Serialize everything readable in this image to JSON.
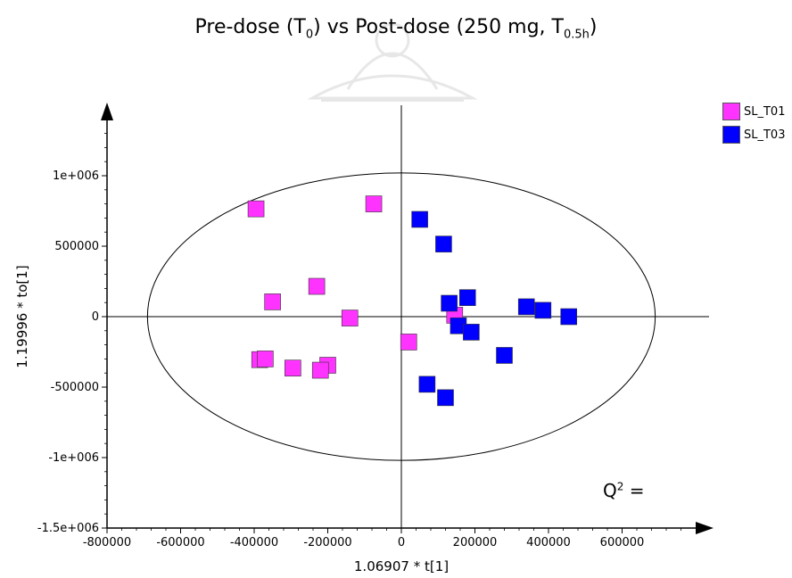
{
  "chart_data": {
    "type": "scatter",
    "title_main": "Pre-dose (T",
    "title_sub1": "0",
    "title_mid": ") vs Post-dose (250 mg, T",
    "title_sub2": "0.5h",
    "title_end": ")",
    "xlabel": "1.06907 * t[1]",
    "ylabel": "1.19996 * to[1]",
    "xlim": [
      -800000,
      800000
    ],
    "ylim": [
      -1500000,
      1500000
    ],
    "x_ticks": [
      -800000,
      -600000,
      -400000,
      -200000,
      0,
      200000,
      400000,
      600000
    ],
    "x_tick_labels": [
      "-800000",
      "-600000",
      "-400000",
      "-200000",
      "0",
      "200000",
      "400000",
      "600000"
    ],
    "y_ticks": [
      -1500000,
      -1000000,
      -500000,
      0,
      500000,
      1000000
    ],
    "y_tick_labels": [
      "-1.5e+006",
      "-1e+006",
      "-500000",
      "0",
      "500000",
      "1e+006"
    ],
    "ellipse": {
      "cx": 0,
      "cy": 0,
      "rx": 690000,
      "ry": 1020000
    },
    "series": [
      {
        "name": "SL_T01",
        "color": "#ff33ff",
        "points": [
          [
            -395000,
            765000
          ],
          [
            -75000,
            800000
          ],
          [
            -230000,
            215000
          ],
          [
            -350000,
            105000
          ],
          [
            -140000,
            -10000
          ],
          [
            20000,
            -180000
          ],
          [
            145000,
            10000
          ],
          [
            -385000,
            -305000
          ],
          [
            -370000,
            -300000
          ],
          [
            -295000,
            -365000
          ],
          [
            -200000,
            -345000
          ],
          [
            -220000,
            -380000
          ]
        ]
      },
      {
        "name": "SL_T03",
        "color": "#0000ff",
        "points": [
          [
            50000,
            690000
          ],
          [
            115000,
            515000
          ],
          [
            180000,
            135000
          ],
          [
            130000,
            95000
          ],
          [
            155000,
            -65000
          ],
          [
            190000,
            -110000
          ],
          [
            340000,
            70000
          ],
          [
            385000,
            45000
          ],
          [
            455000,
            0
          ],
          [
            280000,
            -275000
          ],
          [
            70000,
            -480000
          ],
          [
            120000,
            -575000
          ]
        ]
      }
    ],
    "q2_label": "Q",
    "q2_sup": "2",
    "q2_suffix": " ="
  }
}
